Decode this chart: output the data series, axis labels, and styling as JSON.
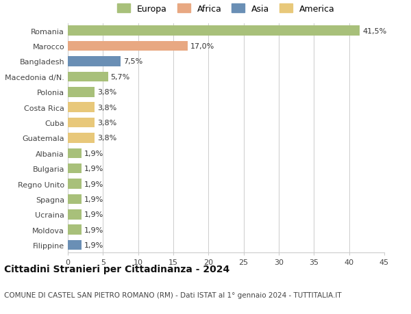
{
  "title": "Cittadini Stranieri per Cittadinanza - 2024",
  "subtitle": "COMUNE DI CASTEL SAN PIETRO ROMANO (RM) - Dati ISTAT al 1° gennaio 2024 - TUTTITALIA.IT",
  "countries": [
    "Romania",
    "Marocco",
    "Bangladesh",
    "Macedonia d/N.",
    "Polonia",
    "Costa Rica",
    "Cuba",
    "Guatemala",
    "Albania",
    "Bulgaria",
    "Regno Unito",
    "Spagna",
    "Ucraina",
    "Moldova",
    "Filippine"
  ],
  "values": [
    41.5,
    17.0,
    7.5,
    5.7,
    3.8,
    3.8,
    3.8,
    3.8,
    1.9,
    1.9,
    1.9,
    1.9,
    1.9,
    1.9,
    1.9
  ],
  "labels": [
    "41,5%",
    "17,0%",
    "7,5%",
    "5,7%",
    "3,8%",
    "3,8%",
    "3,8%",
    "3,8%",
    "1,9%",
    "1,9%",
    "1,9%",
    "1,9%",
    "1,9%",
    "1,9%",
    "1,9%"
  ],
  "continents": [
    "Europa",
    "Africa",
    "Asia",
    "Europa",
    "Europa",
    "America",
    "America",
    "America",
    "Europa",
    "Europa",
    "Europa",
    "Europa",
    "Europa",
    "Europa",
    "Asia"
  ],
  "colors": {
    "Europa": "#a8c07a",
    "Africa": "#e8a882",
    "Asia": "#6a8fb5",
    "America": "#e8c87a"
  },
  "legend_order": [
    "Europa",
    "Africa",
    "Asia",
    "America"
  ],
  "xlim": [
    0,
    45
  ],
  "xticks": [
    0,
    5,
    10,
    15,
    20,
    25,
    30,
    35,
    40,
    45
  ],
  "background_color": "#ffffff",
  "grid_color": "#cccccc",
  "bar_height": 0.65,
  "title_fontsize": 10,
  "subtitle_fontsize": 7.5,
  "label_fontsize": 8,
  "tick_fontsize": 8,
  "legend_fontsize": 9
}
